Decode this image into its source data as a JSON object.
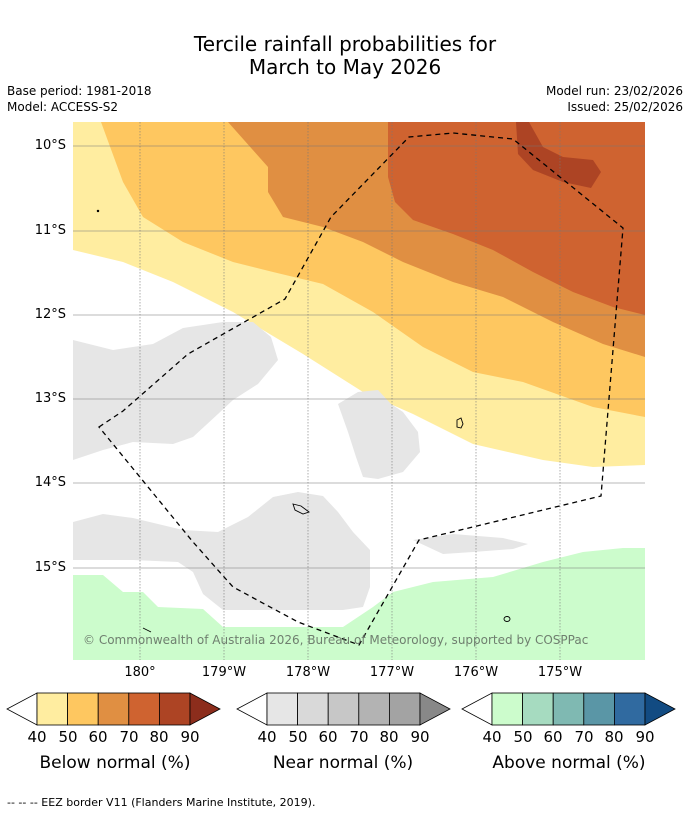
{
  "title": {
    "line1": "Tercile rainfall probabilities for",
    "line2": "March to May 2026"
  },
  "meta": {
    "base_period": "Base period: 1981-2018",
    "model": "Model: ACCESS-S2",
    "model_run": "Model run: 23/02/2026",
    "issued": "Issued: 25/02/2026"
  },
  "map": {
    "lat_labels": [
      "10°S",
      "11°S",
      "12°S",
      "13°S",
      "14°S",
      "15°S"
    ],
    "lon_labels": [
      "180°",
      "179°W",
      "178°W",
      "177°W",
      "176°W",
      "175°W"
    ],
    "copyright": "© Commonwealth of Australia 2026, Bureau of Meteorology, supported by COSPPac"
  },
  "legend": {
    "below": {
      "caption": "Below normal (%)",
      "ticks": [
        "40",
        "50",
        "60",
        "70",
        "80",
        "90"
      ],
      "colors": [
        "#ffeda0",
        "#fec760",
        "#e08f42",
        "#cf6330",
        "#ad4424",
        "#8c2d1c"
      ]
    },
    "near": {
      "caption": "Near normal (%)",
      "ticks": [
        "40",
        "50",
        "60",
        "70",
        "80",
        "90"
      ],
      "colors": [
        "#e6e6e6",
        "#d9d9d9",
        "#c7c7c7",
        "#b3b3b3",
        "#a3a3a3",
        "#888888"
      ]
    },
    "above": {
      "caption": "Above normal (%)",
      "ticks": [
        "40",
        "50",
        "60",
        "70",
        "80",
        "90"
      ],
      "colors": [
        "#ccfccc",
        "#a6dbc0",
        "#7fb9b2",
        "#5a96a6",
        "#306aa0",
        "#124b82"
      ]
    }
  },
  "footer": "-- -- -- EEZ border V11 (Flanders Marine Institute, 2019)."
}
